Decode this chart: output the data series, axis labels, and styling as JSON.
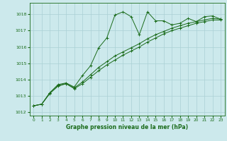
{
  "title": "Graphe pression niveau de la mer (hPa)",
  "bg_color": "#cce9ec",
  "grid_color": "#aad0d4",
  "line_color": "#1a6b1a",
  "xlim": [
    -0.5,
    23.5
  ],
  "ylim": [
    1011.8,
    1018.7
  ],
  "yticks": [
    1012,
    1013,
    1014,
    1015,
    1016,
    1017,
    1018
  ],
  "xticks": [
    0,
    1,
    2,
    3,
    4,
    5,
    6,
    7,
    8,
    9,
    10,
    11,
    12,
    13,
    14,
    15,
    16,
    17,
    18,
    19,
    20,
    21,
    22,
    23
  ],
  "series1_x": [
    0,
    1,
    2,
    3,
    4,
    5,
    6,
    7,
    8,
    9,
    10,
    11,
    12,
    13,
    14,
    15,
    16,
    17,
    18,
    19,
    20,
    21,
    22,
    23
  ],
  "series1_y": [
    1012.4,
    1012.5,
    1013.2,
    1013.7,
    1013.8,
    1013.55,
    1014.25,
    1014.85,
    1015.95,
    1016.55,
    1017.95,
    1018.15,
    1017.85,
    1016.75,
    1018.15,
    1017.6,
    1017.6,
    1017.35,
    1017.45,
    1017.75,
    1017.55,
    1017.85,
    1017.9,
    1017.7
  ],
  "series2_x": [
    0,
    1,
    2,
    3,
    4,
    5,
    6,
    7,
    8,
    9,
    10,
    11,
    12,
    13,
    14,
    15,
    16,
    17,
    18,
    19,
    20,
    21,
    22,
    23
  ],
  "series2_y": [
    1012.4,
    1012.5,
    1013.2,
    1013.65,
    1013.75,
    1013.5,
    1013.85,
    1014.3,
    1014.75,
    1015.1,
    1015.45,
    1015.7,
    1015.95,
    1016.2,
    1016.5,
    1016.75,
    1016.95,
    1017.15,
    1017.3,
    1017.45,
    1017.55,
    1017.65,
    1017.75,
    1017.7
  ],
  "series3_x": [
    0,
    1,
    2,
    3,
    4,
    5,
    6,
    7,
    8,
    9,
    10,
    11,
    12,
    13,
    14,
    15,
    16,
    17,
    18,
    19,
    20,
    21,
    22,
    23
  ],
  "series3_y": [
    1012.4,
    1012.5,
    1013.15,
    1013.6,
    1013.75,
    1013.45,
    1013.75,
    1014.15,
    1014.55,
    1014.9,
    1015.2,
    1015.5,
    1015.75,
    1016.0,
    1016.3,
    1016.55,
    1016.8,
    1017.0,
    1017.15,
    1017.3,
    1017.45,
    1017.55,
    1017.65,
    1017.65
  ]
}
